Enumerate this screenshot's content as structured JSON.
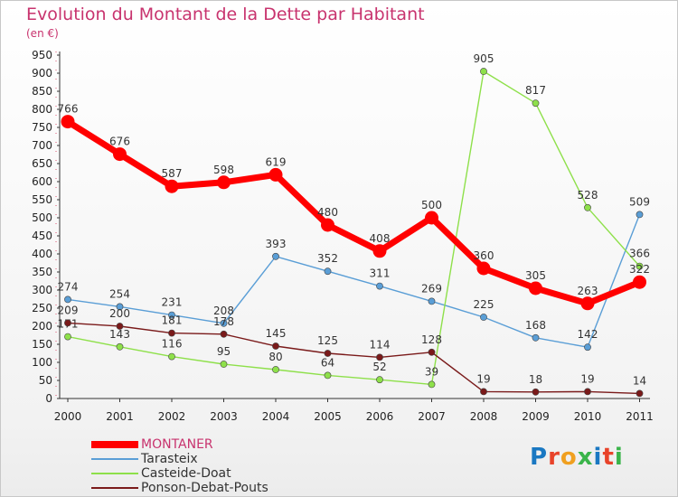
{
  "title": "Evolution du Montant de la Dette par Habitant",
  "unit": "(en €)",
  "logo": {
    "letters": [
      "P",
      "r",
      "o",
      "x",
      "i",
      "t",
      "i"
    ],
    "colors": [
      "#1a78c2",
      "#e8432a",
      "#f0a020",
      "#3ab44a",
      "#1a78c2",
      "#e8432a",
      "#3ab44a"
    ]
  },
  "chart_data": {
    "type": "line",
    "categories": [
      "2000",
      "2001",
      "2002",
      "2003",
      "2004",
      "2005",
      "2006",
      "2007",
      "2008",
      "2009",
      "2010",
      "2011"
    ],
    "ylim": [
      0,
      950
    ],
    "yticks": [
      0,
      50,
      100,
      150,
      200,
      250,
      300,
      350,
      400,
      450,
      500,
      550,
      600,
      650,
      700,
      750,
      800,
      850,
      900,
      950
    ],
    "grid": false,
    "legend_position": "bottom-left",
    "series": [
      {
        "name": "MONTANER",
        "color": "#ff0000",
        "width": 7,
        "values": [
          766,
          676,
          587,
          598,
          619,
          480,
          408,
          500,
          360,
          305,
          263,
          322
        ]
      },
      {
        "name": "Tarasteix",
        "color": "#5a9ed6",
        "width": 1.4,
        "values": [
          274,
          254,
          231,
          208,
          393,
          352,
          311,
          269,
          225,
          168,
          142,
          509
        ]
      },
      {
        "name": "Casteide-Doat",
        "color": "#8ee04a",
        "width": 1.4,
        "values": [
          171,
          143,
          116,
          95,
          80,
          64,
          52,
          39,
          905,
          817,
          528,
          366
        ]
      },
      {
        "name": "Ponson-Debat-Pouts",
        "color": "#7a1a1a",
        "width": 1.4,
        "values": [
          209,
          200,
          181,
          178,
          145,
          125,
          114,
          128,
          19,
          18,
          19,
          14
        ]
      }
    ]
  }
}
